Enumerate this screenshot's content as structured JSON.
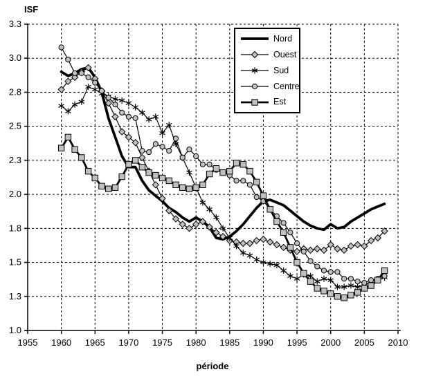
{
  "chart": {
    "y_axis_title": "ISF",
    "x_axis_title": "période"
  },
  "chart_data": {
    "type": "line",
    "title": "",
    "xlabel": "période",
    "ylabel": "ISF",
    "xlim": [
      1955,
      2010
    ],
    "ylim": [
      1.0,
      3.25
    ],
    "grid": "dashed-both-axes",
    "legend_position": "top-right-box",
    "line_color": "#000000",
    "marker_fill": "#c0c0c0",
    "x_ticks": {
      "labels": [
        "1955",
        "1960",
        "1965",
        "1970",
        "1975",
        "1980",
        "1985",
        "1990",
        "1995",
        "2000",
        "2005",
        "2010"
      ],
      "values": [
        1955,
        1960,
        1965,
        1970,
        1975,
        1980,
        1985,
        1990,
        1995,
        2000,
        2005,
        2010
      ]
    },
    "y_ticks": {
      "labels": [
        "1.0",
        "1.3",
        "1.5",
        "1.8",
        "2.0",
        "2.3",
        "2.5",
        "2.8",
        "3.0",
        "3.3"
      ],
      "values": [
        1.0,
        1.25,
        1.5,
        1.75,
        2.0,
        2.25,
        2.5,
        2.75,
        3.0,
        3.25
      ]
    },
    "x": [
      1960,
      1961,
      1962,
      1963,
      1964,
      1965,
      1966,
      1967,
      1968,
      1969,
      1970,
      1971,
      1972,
      1973,
      1974,
      1975,
      1976,
      1977,
      1978,
      1979,
      1980,
      1981,
      1982,
      1983,
      1984,
      1985,
      1986,
      1987,
      1988,
      1989,
      1990,
      1991,
      1992,
      1993,
      1994,
      1995,
      1996,
      1997,
      1998,
      1999,
      2000,
      2001,
      2002,
      2003,
      2004,
      2005,
      2006,
      2007,
      2008
    ],
    "series": [
      {
        "name": "Nord",
        "marker": "none",
        "line": "thick",
        "values": [
          2.9,
          2.87,
          2.89,
          2.92,
          2.93,
          2.86,
          2.75,
          2.56,
          2.42,
          2.28,
          2.2,
          2.2,
          2.1,
          2.03,
          1.99,
          1.95,
          1.9,
          1.87,
          1.83,
          1.8,
          1.83,
          1.8,
          1.76,
          1.68,
          1.67,
          1.69,
          1.73,
          1.78,
          1.84,
          1.9,
          1.95,
          1.96,
          1.94,
          1.92,
          1.88,
          1.84,
          1.8,
          1.77,
          1.75,
          1.74,
          1.78,
          1.75,
          1.76,
          1.8,
          1.83,
          1.86,
          1.89,
          1.91,
          1.93
        ]
      },
      {
        "name": "Ouest",
        "marker": "diamond",
        "line": "thin",
        "values": [
          2.77,
          2.83,
          2.86,
          2.9,
          2.93,
          2.85,
          2.76,
          2.67,
          2.57,
          2.46,
          2.42,
          2.38,
          2.27,
          2.17,
          2.07,
          1.97,
          1.88,
          1.82,
          1.78,
          1.75,
          1.78,
          1.8,
          1.76,
          1.72,
          1.69,
          1.66,
          1.65,
          1.64,
          1.64,
          1.66,
          1.67,
          1.65,
          1.63,
          1.61,
          1.59,
          1.58,
          1.6,
          1.59,
          1.6,
          1.59,
          1.63,
          1.6,
          1.59,
          1.62,
          1.63,
          1.62,
          1.66,
          1.68,
          1.73
        ]
      },
      {
        "name": "Sud",
        "marker": "asterisk",
        "line": "thin",
        "values": [
          2.65,
          2.61,
          2.66,
          2.68,
          2.79,
          2.77,
          2.74,
          2.72,
          2.7,
          2.69,
          2.67,
          2.64,
          2.6,
          2.55,
          2.57,
          2.45,
          2.51,
          2.37,
          2.27,
          2.16,
          2.05,
          1.94,
          1.89,
          1.83,
          1.75,
          1.68,
          1.62,
          1.57,
          1.55,
          1.52,
          1.5,
          1.49,
          1.48,
          1.44,
          1.4,
          1.38,
          1.41,
          1.4,
          1.36,
          1.38,
          1.37,
          1.32,
          1.32,
          1.33,
          1.32,
          1.33,
          1.36,
          1.37,
          1.39
        ]
      },
      {
        "name": "Centre",
        "marker": "circle",
        "line": "thin",
        "values": [
          3.08,
          2.99,
          2.89,
          2.89,
          2.86,
          2.82,
          2.76,
          2.71,
          2.66,
          2.6,
          2.57,
          2.56,
          2.32,
          2.31,
          2.37,
          2.35,
          2.32,
          2.41,
          2.27,
          2.33,
          2.28,
          2.22,
          2.22,
          2.18,
          2.16,
          2.14,
          2.1,
          2.1,
          2.07,
          1.98,
          1.95,
          1.89,
          1.84,
          1.79,
          1.72,
          1.64,
          1.58,
          1.51,
          1.47,
          1.44,
          1.43,
          1.43,
          1.38,
          1.38,
          1.36,
          1.35,
          1.37,
          1.38,
          1.4
        ]
      },
      {
        "name": "Est",
        "marker": "square",
        "line": "thick",
        "values": [
          2.34,
          2.42,
          2.33,
          2.27,
          2.17,
          2.12,
          2.06,
          2.04,
          2.05,
          2.13,
          2.22,
          2.25,
          2.2,
          2.16,
          2.14,
          2.12,
          2.1,
          2.07,
          2.05,
          2.04,
          2.05,
          2.07,
          2.15,
          2.19,
          2.16,
          2.17,
          2.23,
          2.22,
          2.17,
          2.09,
          1.99,
          1.89,
          1.8,
          1.72,
          1.61,
          1.5,
          1.42,
          1.36,
          1.31,
          1.29,
          1.27,
          1.25,
          1.24,
          1.26,
          1.28,
          1.31,
          1.33,
          1.37,
          1.44
        ]
      }
    ]
  }
}
